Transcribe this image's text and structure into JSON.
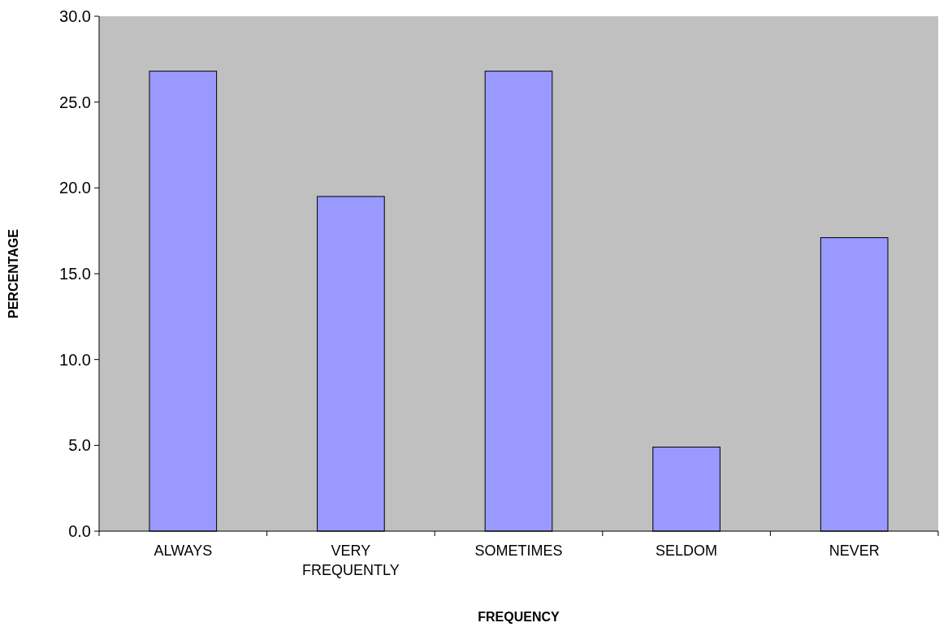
{
  "chart_data": {
    "type": "bar",
    "xlabel": "FREQUENCY",
    "ylabel": "PERCENTAGE",
    "categories": [
      "ALWAYS",
      "VERY FREQUENTLY",
      "SOMETIMES",
      "SELDOM",
      "NEVER"
    ],
    "values": [
      26.8,
      19.5,
      26.8,
      4.9,
      17.1
    ],
    "color": "#9999ff",
    "ylim": [
      0,
      30
    ],
    "yticks": [
      {
        "value": 0,
        "label": "0.0"
      },
      {
        "value": 5,
        "label": "5.0"
      },
      {
        "value": 10,
        "label": "10.0"
      },
      {
        "value": 15,
        "label": "15.0"
      },
      {
        "value": 20,
        "label": "20.0"
      },
      {
        "value": 25,
        "label": "25.0"
      },
      {
        "value": 30,
        "label": "30.0"
      }
    ],
    "grid": false
  }
}
